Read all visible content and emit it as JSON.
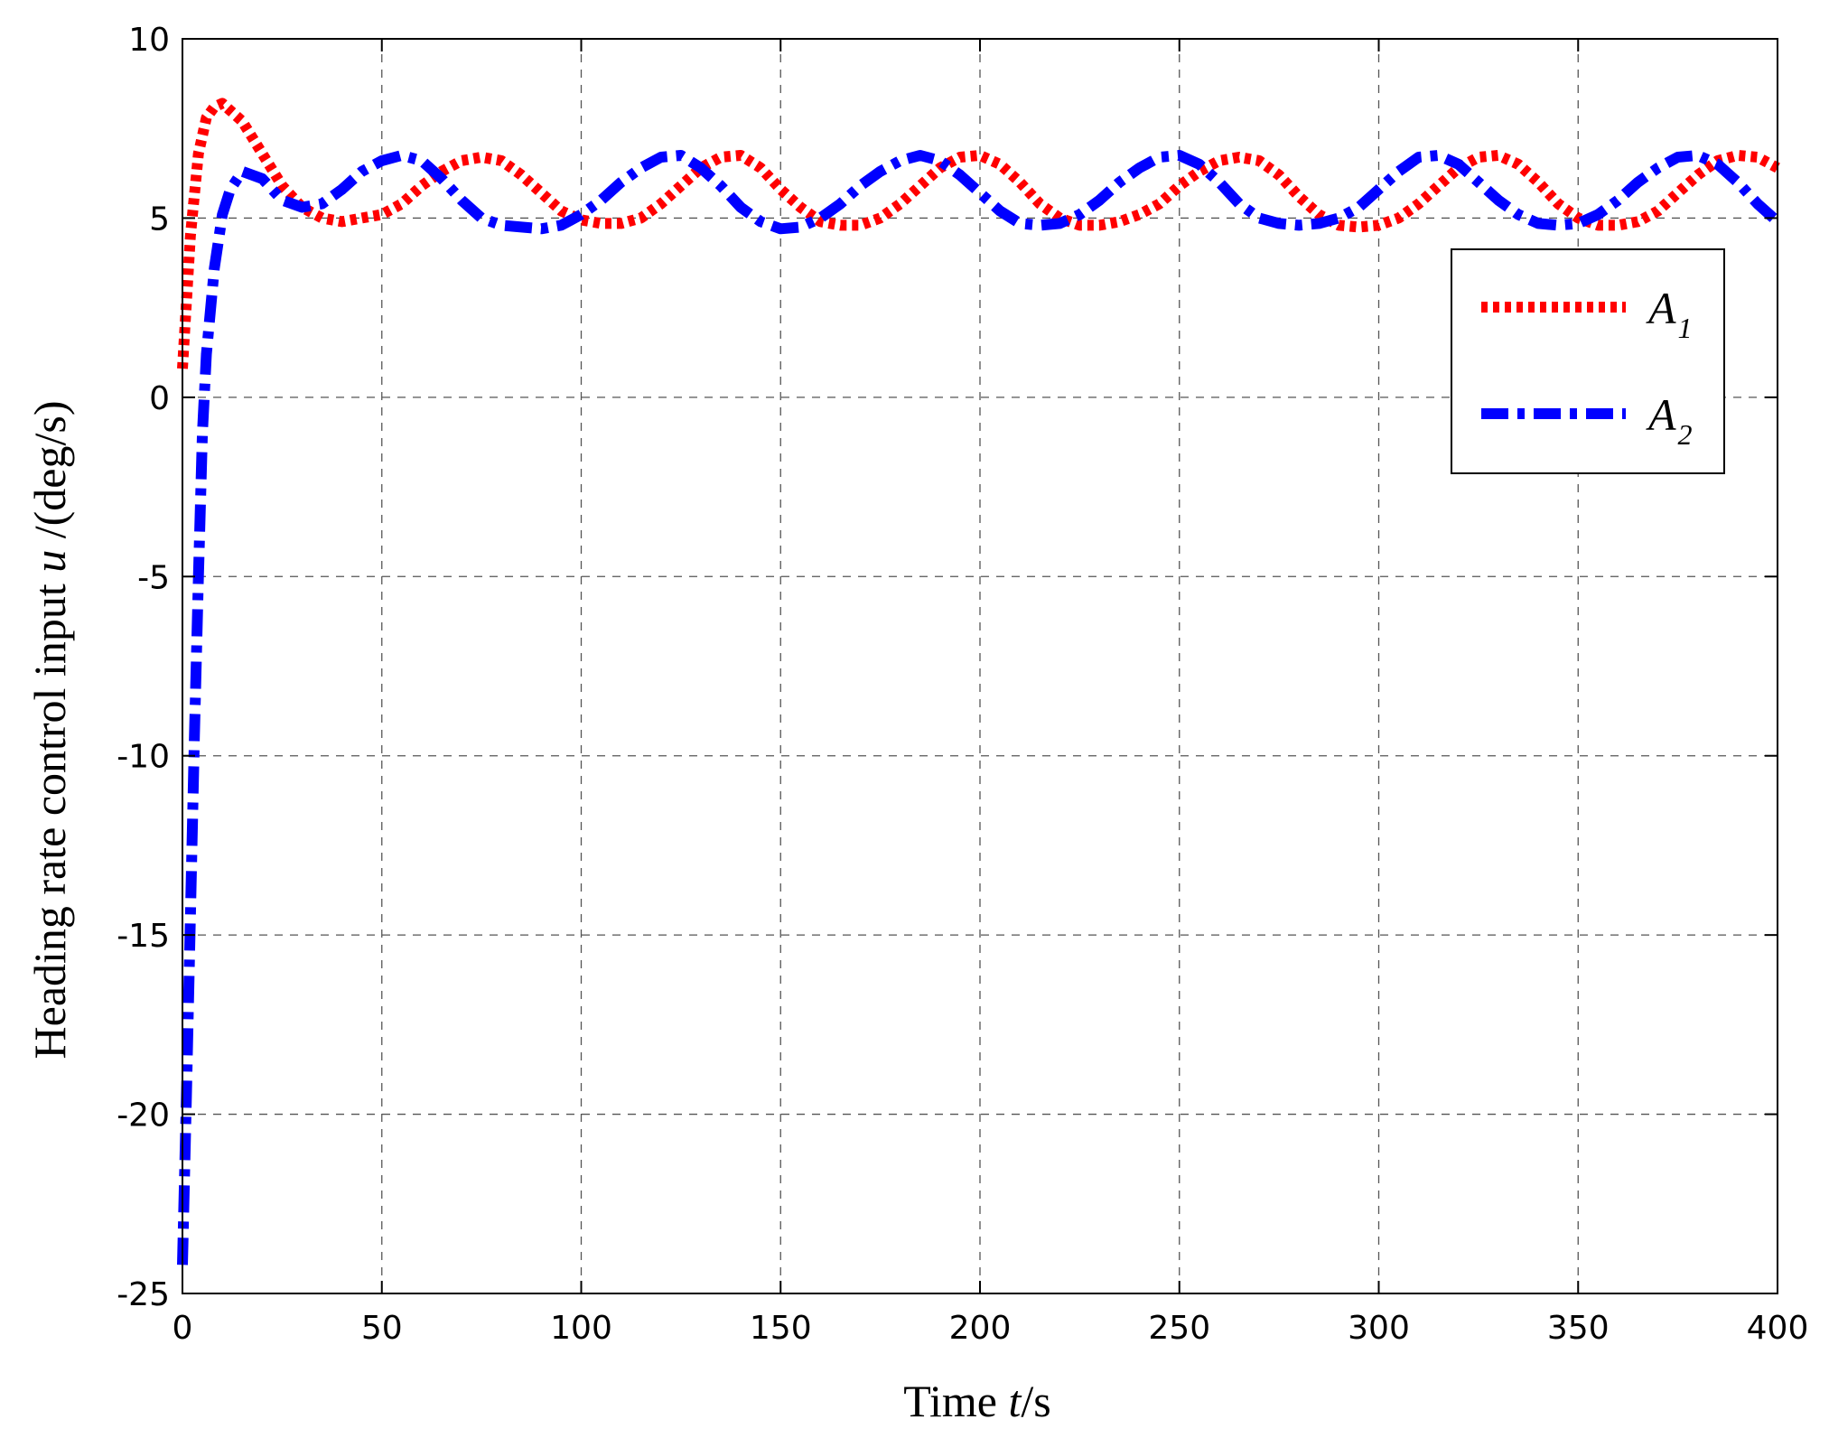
{
  "chart_data": {
    "type": "line",
    "xlabel": {
      "prefix": "Time ",
      "var": "t",
      "suffix": "/s"
    },
    "ylabel": {
      "prefix": "Heading rate control input ",
      "var": "u",
      "suffix": " /(deg/s)"
    },
    "xlim": [
      0,
      400
    ],
    "ylim": [
      -25,
      10
    ],
    "xticks": [
      0,
      50,
      100,
      150,
      200,
      250,
      300,
      350,
      400
    ],
    "yticks": [
      10,
      5,
      0,
      -5,
      -10,
      -15,
      -20,
      -25
    ],
    "xtick_labels": [
      "0",
      "50",
      "100",
      "150",
      "200",
      "250",
      "300",
      "350",
      "400"
    ],
    "ytick_labels": [
      "10",
      "5",
      "0",
      "-5",
      "-10",
      "-15",
      "-20",
      "-25"
    ],
    "grid": true,
    "legend_position": "upper-right",
    "series": [
      {
        "name": "A1",
        "legend_base": "A",
        "legend_sub": "1",
        "color": "#ff0000",
        "style": "dotted",
        "x": [
          0,
          2,
          4,
          6,
          8,
          10,
          12,
          15,
          20,
          25,
          30,
          35,
          40,
          45,
          50,
          55,
          60,
          65,
          70,
          75,
          80,
          85,
          90,
          95,
          100,
          105,
          110,
          115,
          120,
          125,
          130,
          135,
          140,
          145,
          150,
          155,
          160,
          165,
          170,
          175,
          180,
          185,
          190,
          195,
          200,
          205,
          210,
          215,
          220,
          225,
          230,
          235,
          240,
          245,
          250,
          255,
          260,
          265,
          270,
          275,
          280,
          285,
          290,
          295,
          300,
          305,
          310,
          315,
          320,
          325,
          330,
          335,
          340,
          345,
          350,
          355,
          360,
          365,
          370,
          375,
          380,
          385,
          390,
          395,
          400
        ],
        "y": [
          0.8,
          4.5,
          6.8,
          7.8,
          8.1,
          8.2,
          8.0,
          7.7,
          6.8,
          5.9,
          5.3,
          5.0,
          4.9,
          5.0,
          5.1,
          5.4,
          5.9,
          6.3,
          6.6,
          6.7,
          6.6,
          6.2,
          5.7,
          5.2,
          4.95,
          4.85,
          4.85,
          5.0,
          5.4,
          5.9,
          6.4,
          6.7,
          6.75,
          6.4,
          5.8,
          5.3,
          4.9,
          4.8,
          4.8,
          5.0,
          5.4,
          5.9,
          6.4,
          6.7,
          6.75,
          6.5,
          6.0,
          5.4,
          5.0,
          4.8,
          4.8,
          4.9,
          5.1,
          5.4,
          5.9,
          6.3,
          6.6,
          6.7,
          6.6,
          6.2,
          5.6,
          5.1,
          4.8,
          4.75,
          4.8,
          5.0,
          5.4,
          5.9,
          6.4,
          6.7,
          6.75,
          6.5,
          6.0,
          5.4,
          5.0,
          4.8,
          4.8,
          4.9,
          5.2,
          5.7,
          6.2,
          6.6,
          6.75,
          6.7,
          6.4
        ]
      },
      {
        "name": "A2",
        "legend_base": "A",
        "legend_sub": "2",
        "color": "#0000ff",
        "style": "dashdot",
        "x": [
          0,
          1,
          2,
          3,
          4,
          5,
          6,
          8,
          10,
          12,
          15,
          20,
          25,
          30,
          35,
          40,
          45,
          50,
          55,
          60,
          65,
          70,
          75,
          80,
          85,
          90,
          95,
          100,
          105,
          110,
          115,
          120,
          125,
          130,
          135,
          140,
          145,
          150,
          155,
          160,
          165,
          170,
          175,
          180,
          185,
          190,
          195,
          200,
          205,
          210,
          215,
          220,
          225,
          230,
          235,
          240,
          245,
          250,
          255,
          260,
          265,
          270,
          275,
          280,
          285,
          290,
          295,
          300,
          305,
          310,
          315,
          320,
          325,
          330,
          335,
          340,
          345,
          350,
          355,
          360,
          365,
          370,
          375,
          380,
          385,
          390,
          395,
          400
        ],
        "y": [
          -24.2,
          -19.5,
          -14.5,
          -9.5,
          -5.0,
          -1.0,
          1.2,
          3.6,
          5.1,
          5.8,
          6.3,
          6.1,
          5.5,
          5.3,
          5.4,
          5.8,
          6.3,
          6.6,
          6.75,
          6.6,
          6.1,
          5.5,
          5.0,
          4.8,
          4.75,
          4.7,
          4.8,
          5.1,
          5.5,
          6.0,
          6.4,
          6.7,
          6.75,
          6.4,
          5.9,
          5.3,
          4.9,
          4.7,
          4.75,
          5.0,
          5.4,
          5.9,
          6.3,
          6.6,
          6.75,
          6.6,
          6.2,
          5.7,
          5.2,
          4.85,
          4.8,
          4.85,
          5.1,
          5.5,
          6.0,
          6.4,
          6.7,
          6.75,
          6.5,
          6.0,
          5.4,
          5.0,
          4.85,
          4.8,
          4.85,
          5.0,
          5.3,
          5.8,
          6.3,
          6.7,
          6.75,
          6.5,
          6.0,
          5.5,
          5.1,
          4.85,
          4.8,
          4.85,
          5.1,
          5.5,
          6.0,
          6.4,
          6.7,
          6.75,
          6.5,
          6.0,
          5.4,
          4.9
        ]
      }
    ]
  }
}
